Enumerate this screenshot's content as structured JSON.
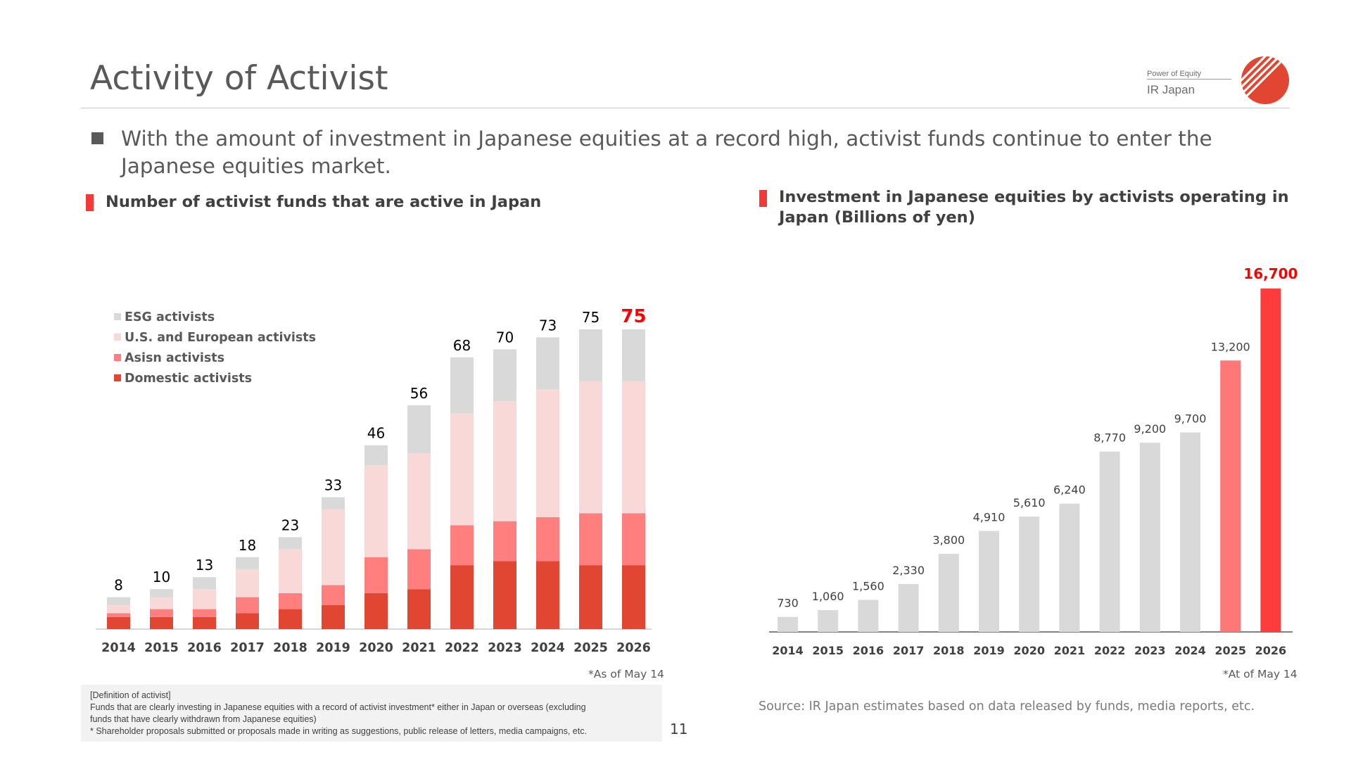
{
  "header": {
    "title": "Activity of Activist",
    "logo_tagline": "Power of Equity",
    "logo_name": "IR Japan",
    "logo_icon": "striped-circle-logo",
    "accent_color": "#f23a3a"
  },
  "bullet": {
    "text": "With the amount of investment in Japanese equities at a record high, activist funds continue to enter the Japanese equities market."
  },
  "left_section": {
    "title": "Number of activist funds that are active in Japan",
    "note": "*As of May 14"
  },
  "right_section": {
    "title": "Investment in Japanese equities by activists operating in Japan (Billions of yen)",
    "note": "*At of May 14"
  },
  "definition": {
    "lines": [
      "[Definition of activist]",
      "Funds that are clearly investing in Japanese equities with a record of activist investment* either in Japan or overseas (excluding",
      "funds that have clearly withdrawn from Japanese equities)",
      "* Shareholder proposals submitted or proposals made in writing as suggestions, public release of letters, media campaigns, etc."
    ]
  },
  "page_number": "11",
  "source": "Source: IR Japan estimates based on data released by funds, media reports, etc.",
  "chart_data": [
    {
      "type": "bar",
      "stacked": true,
      "categories": [
        "2014",
        "2015",
        "2016",
        "2017",
        "2018",
        "2019",
        "2020",
        "2021",
        "2022",
        "2023",
        "2024",
        "2025",
        "2026"
      ],
      "series": [
        {
          "name": "Domestic activists",
          "color": "#e04632",
          "values": [
            3,
            3,
            3,
            4,
            5,
            6,
            9,
            10,
            16,
            17,
            17,
            16,
            16
          ]
        },
        {
          "name": "Asisn activists",
          "color": "#ff7f7f",
          "values": [
            1,
            2,
            2,
            4,
            4,
            5,
            9,
            10,
            10,
            10,
            11,
            13,
            13
          ]
        },
        {
          "name": "U.S. and European activists",
          "color": "#f9d9d7",
          "values": [
            2,
            3,
            5,
            7,
            11,
            19,
            23,
            24,
            28,
            30,
            32,
            33,
            33
          ]
        },
        {
          "name": "ESG activists",
          "color": "#d9d9d9",
          "values": [
            2,
            2,
            3,
            3,
            3,
            3,
            5,
            12,
            14,
            13,
            13,
            13,
            13
          ]
        }
      ],
      "totals": [
        "8",
        "10",
        "13",
        "18",
        "23",
        "33",
        "46",
        "56",
        "68",
        "70",
        "73",
        "75",
        "75"
      ],
      "highlight_color": "#ff0000",
      "ylim": [
        0,
        80
      ],
      "legend_position": "top-left",
      "grid": false
    },
    {
      "type": "bar",
      "categories": [
        "2014",
        "2015",
        "2016",
        "2017",
        "2018",
        "2019",
        "2020",
        "2021",
        "2022",
        "2023",
        "2024",
        "2025",
        "2026"
      ],
      "values": [
        730,
        1060,
        1560,
        2330,
        3800,
        4910,
        5610,
        6240,
        8770,
        9200,
        9700,
        13200,
        16700
      ],
      "labels": [
        "730",
        "1,060",
        "1,560",
        "2,330",
        "3,800",
        "4,910",
        "5,610",
        "6,240",
        "8,770",
        "9,200",
        "9,700",
        "13,200",
        "16,700"
      ],
      "colors": [
        "#d9d9d9",
        "#d9d9d9",
        "#d9d9d9",
        "#d9d9d9",
        "#d9d9d9",
        "#d9d9d9",
        "#d9d9d9",
        "#d9d9d9",
        "#d9d9d9",
        "#d9d9d9",
        "#d9d9d9",
        "#ff7878",
        "#ff3c3c"
      ],
      "highlight_color": "#ff0000",
      "ylim": [
        0,
        17000
      ],
      "grid": false
    }
  ]
}
